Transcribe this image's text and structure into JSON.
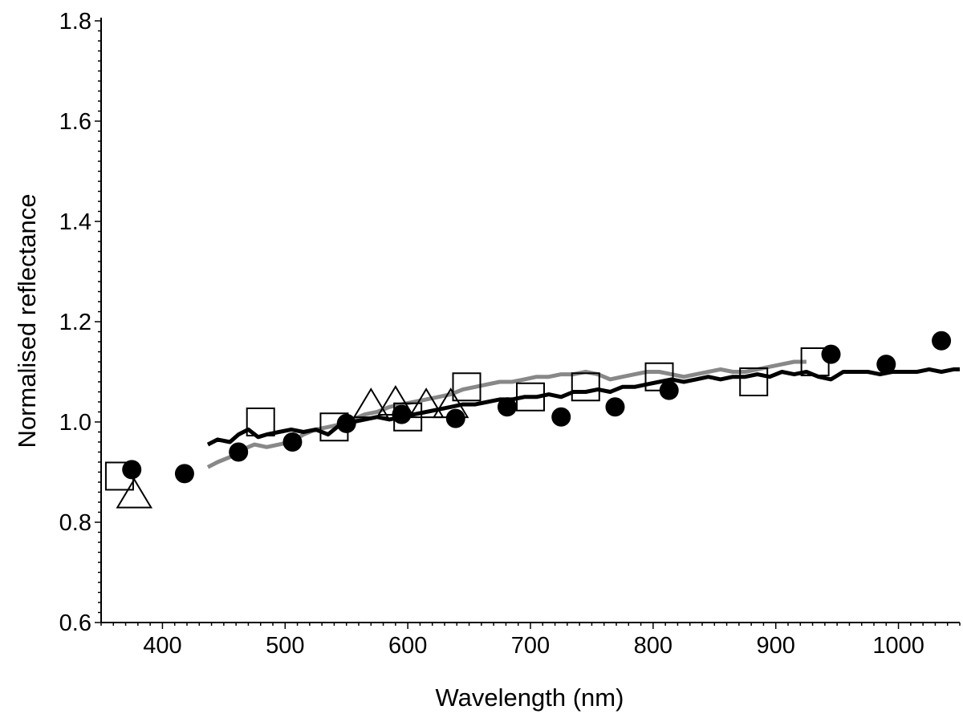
{
  "chart_data": {
    "type": "line",
    "title": "",
    "xlabel": "Wavelength (nm)",
    "ylabel": "Normalised reflectance",
    "xlim": [
      350,
      1050
    ],
    "ylim": [
      0.6,
      1.8
    ],
    "x_ticks": [
      400,
      500,
      600,
      700,
      800,
      900,
      1000
    ],
    "x_tick_labels": [
      "400",
      "500",
      "600",
      "700",
      "800",
      "900",
      "1000"
    ],
    "y_ticks": [
      0.6,
      0.8,
      1.0,
      1.2,
      1.4,
      1.6,
      1.8
    ],
    "y_tick_labels": [
      "0.6",
      "0.8",
      "1.0",
      "1.2",
      "1.4",
      "1.6",
      "1.8"
    ],
    "grid": false,
    "series": [
      {
        "name": "grey spectrum",
        "kind": "line",
        "color": "#888888",
        "x": [
          437,
          445,
          455,
          465,
          475,
          485,
          495,
          505,
          515,
          525,
          535,
          545,
          555,
          565,
          575,
          585,
          595,
          605,
          615,
          625,
          635,
          645,
          655,
          665,
          675,
          685,
          695,
          705,
          715,
          725,
          735,
          745,
          755,
          765,
          775,
          785,
          795,
          805,
          815,
          825,
          835,
          845,
          855,
          865,
          875,
          885,
          895,
          905,
          915,
          925
        ],
        "y": [
          0.91,
          0.92,
          0.93,
          0.945,
          0.955,
          0.95,
          0.955,
          0.96,
          0.975,
          0.985,
          0.99,
          0.995,
          1.005,
          1.015,
          1.02,
          1.03,
          1.035,
          1.04,
          1.045,
          1.05,
          1.055,
          1.065,
          1.07,
          1.075,
          1.08,
          1.08,
          1.085,
          1.09,
          1.09,
          1.095,
          1.095,
          1.1,
          1.095,
          1.085,
          1.09,
          1.095,
          1.1,
          1.1,
          1.095,
          1.09,
          1.095,
          1.1,
          1.105,
          1.1,
          1.1,
          1.105,
          1.11,
          1.115,
          1.12,
          1.12
        ]
      },
      {
        "name": "black spectrum",
        "kind": "line",
        "color": "#000000",
        "x": [
          437,
          445,
          455,
          462,
          470,
          478,
          485,
          495,
          505,
          515,
          525,
          535,
          545,
          555,
          565,
          575,
          585,
          595,
          605,
          615,
          625,
          635,
          645,
          655,
          665,
          675,
          685,
          695,
          705,
          715,
          725,
          735,
          745,
          755,
          765,
          775,
          785,
          795,
          805,
          815,
          825,
          835,
          845,
          855,
          865,
          875,
          885,
          895,
          905,
          915,
          925,
          935,
          945,
          955,
          965,
          975,
          985,
          995,
          1005,
          1015,
          1025,
          1035,
          1045,
          1050
        ],
        "y": [
          0.955,
          0.965,
          0.96,
          0.975,
          0.985,
          0.97,
          0.975,
          0.98,
          0.985,
          0.98,
          0.985,
          0.975,
          0.995,
          1.0,
          1.005,
          1.01,
          1.005,
          1.01,
          1.015,
          1.02,
          1.025,
          1.03,
          1.035,
          1.035,
          1.04,
          1.045,
          1.045,
          1.05,
          1.05,
          1.055,
          1.05,
          1.06,
          1.06,
          1.065,
          1.06,
          1.07,
          1.07,
          1.075,
          1.08,
          1.085,
          1.08,
          1.085,
          1.09,
          1.085,
          1.09,
          1.09,
          1.095,
          1.09,
          1.1,
          1.095,
          1.1,
          1.09,
          1.085,
          1.1,
          1.1,
          1.1,
          1.095,
          1.1,
          1.1,
          1.1,
          1.105,
          1.1,
          1.105,
          1.105
        ]
      },
      {
        "name": "filled circles",
        "kind": "marker",
        "marker": "filled-circle",
        "color": "#000000",
        "x": [
          375,
          418,
          462,
          506,
          550,
          595,
          639,
          681,
          725,
          769,
          813,
          945,
          990,
          1035
        ],
        "y": [
          0.905,
          0.897,
          0.94,
          0.96,
          0.997,
          1.015,
          1.007,
          1.03,
          1.01,
          1.03,
          1.063,
          1.135,
          1.115,
          1.162
        ]
      },
      {
        "name": "open squares",
        "kind": "marker",
        "marker": "open-square",
        "color": "#000000",
        "x": [
          365,
          480,
          540,
          600,
          648,
          700,
          745,
          805,
          882,
          932
        ],
        "y": [
          0.892,
          1.0,
          0.99,
          1.01,
          1.07,
          1.05,
          1.07,
          1.09,
          1.08,
          1.12
        ]
      },
      {
        "name": "open triangles",
        "kind": "marker",
        "marker": "open-triangle",
        "color": "#000000",
        "x": [
          377,
          570,
          590,
          615,
          635
        ],
        "y": [
          0.855,
          1.035,
          1.04,
          1.035,
          1.035
        ]
      }
    ]
  }
}
